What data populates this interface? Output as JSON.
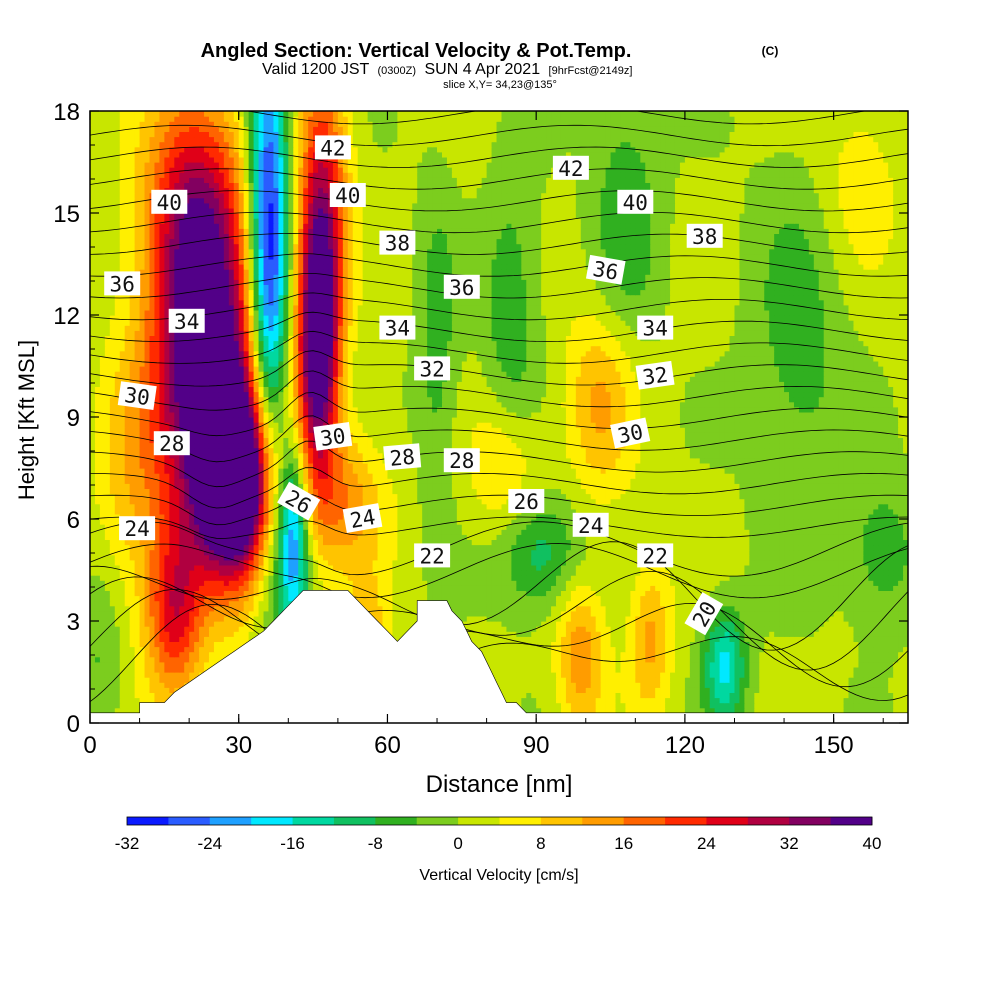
{
  "header": {
    "title_main": "Angled Section: Vertical Velocity & Pot.Temp.",
    "title_mark": "(C)",
    "valid_prefix": "Valid 1200 JST",
    "valid_utc": "(0300Z)",
    "valid_date": "SUN 4 Apr 2021",
    "valid_fcst": "[9hrFcst@2149z]",
    "slice": "slice X,Y= 34,23@135°"
  },
  "colorbar": {
    "ticks": [
      "-32",
      "-24",
      "-16",
      "-8",
      "0",
      "8",
      "16",
      "24",
      "32",
      "40"
    ],
    "label": "Vertical Velocity [cm/s]",
    "colors": [
      "#0a1aff",
      "#2a5cff",
      "#1ea0ff",
      "#00e8ff",
      "#00d8a0",
      "#10c060",
      "#30b020",
      "#7ccd1e",
      "#c8e600",
      "#ffef00",
      "#ffc400",
      "#ff9c00",
      "#ff6400",
      "#ff2a00",
      "#e00018",
      "#b00040",
      "#820060",
      "#520088"
    ]
  },
  "chart_data": {
    "type": "heatmap",
    "title": "Angled Section: Vertical Velocity & Pot.Temp.",
    "xlabel": "Distance [nm]",
    "ylabel": "Height [Kft MSL]",
    "xlim": [
      0,
      165
    ],
    "ylim": [
      0,
      18
    ],
    "x_ticks": [
      "0",
      "30",
      "60",
      "90",
      "120",
      "150"
    ],
    "y_ticks": [
      "0",
      "3",
      "6",
      "9",
      "12",
      "15",
      "18"
    ],
    "fill_variable": "Vertical Velocity [cm/s]",
    "fill_levels": [
      -32,
      -24,
      -16,
      -8,
      0,
      8,
      16,
      24,
      32,
      40
    ],
    "w_features": [
      {
        "x": 22,
        "z": 11.5,
        "w": 30,
        "sx": 7,
        "sz": 3.5
      },
      {
        "x": 30,
        "z": 7,
        "w": 40,
        "sx": 5,
        "sz": 1.8
      },
      {
        "x": 27,
        "z": 8.5,
        "w": 26,
        "sx": 8,
        "sz": 3
      },
      {
        "x": 21,
        "z": 15.5,
        "w": 18,
        "sx": 7,
        "sz": 2.5
      },
      {
        "x": 36,
        "z": 13.5,
        "w": -36,
        "sx": 2.8,
        "sz": 5.5
      },
      {
        "x": 41,
        "z": 5.5,
        "w": -28,
        "sx": 2.2,
        "sz": 2
      },
      {
        "x": 46,
        "z": 11,
        "w": 38,
        "sx": 2.8,
        "sz": 2.5
      },
      {
        "x": 47,
        "z": 15,
        "w": 26,
        "sx": 3.5,
        "sz": 3
      },
      {
        "x": 51,
        "z": 6.5,
        "w": 14,
        "sx": 6,
        "sz": 1.5
      },
      {
        "x": 103,
        "z": 9.5,
        "w": 12,
        "sx": 5,
        "sz": 2
      },
      {
        "x": 99,
        "z": 2,
        "w": 14,
        "sx": 3.5,
        "sz": 1.6
      },
      {
        "x": 113,
        "z": 2.5,
        "w": 12,
        "sx": 3,
        "sz": 1.6
      },
      {
        "x": 108,
        "z": 15,
        "w": -8,
        "sx": 5,
        "sz": 3
      },
      {
        "x": 85,
        "z": 12,
        "w": -8,
        "sx": 4,
        "sz": 3
      },
      {
        "x": 70,
        "z": 11,
        "w": -7,
        "sx": 3,
        "sz": 3.5
      },
      {
        "x": 91,
        "z": 5,
        "w": -12,
        "sx": 6,
        "sz": 1.2
      },
      {
        "x": 128,
        "z": 1.7,
        "w": -18,
        "sx": 3,
        "sz": 1.2
      },
      {
        "x": 143,
        "z": 11,
        "w": -7,
        "sx": 7,
        "sz": 4
      },
      {
        "x": 160,
        "z": 5,
        "w": -8,
        "sx": 5,
        "sz": 1.5
      },
      {
        "x": 2,
        "z": 2,
        "w": -6,
        "sx": 4,
        "sz": 2
      },
      {
        "x": 8,
        "z": 7,
        "w": 8,
        "sx": 5,
        "sz": 3
      },
      {
        "x": 17,
        "z": 3.2,
        "w": 22,
        "sx": 4,
        "sz": 1.8
      },
      {
        "x": 56,
        "z": 2.5,
        "w": 10,
        "sx": 3,
        "sz": 1.2
      },
      {
        "x": 84,
        "z": 7.5,
        "w": 9,
        "sx": 5,
        "sz": 1.5
      },
      {
        "x": 155,
        "z": 16,
        "w": 6,
        "sx": 6,
        "sz": 2
      }
    ],
    "isentropes_K": [
      18,
      19,
      20,
      21,
      22,
      23,
      24,
      25,
      26,
      27,
      28,
      29,
      30,
      31,
      32,
      33,
      34,
      35,
      36,
      37,
      38,
      39,
      40,
      41,
      42,
      43
    ],
    "isentrope_labels": [
      {
        "text": "42",
        "x": 49,
        "z": 16.9,
        "angle": 0
      },
      {
        "text": "42",
        "x": 97,
        "z": 16.3,
        "angle": 0
      },
      {
        "text": "40",
        "x": 16,
        "z": 15.3,
        "angle": 0
      },
      {
        "text": "40",
        "x": 52,
        "z": 15.5,
        "angle": 0
      },
      {
        "text": "40",
        "x": 110,
        "z": 15.3,
        "angle": 0
      },
      {
        "text": "38",
        "x": 62,
        "z": 14.1,
        "angle": 0
      },
      {
        "text": "38",
        "x": 124,
        "z": 14.3,
        "angle": 0
      },
      {
        "text": "36",
        "x": 6.5,
        "z": 12.9,
        "angle": 0
      },
      {
        "text": "36",
        "x": 75,
        "z": 12.8,
        "angle": 0
      },
      {
        "text": "36",
        "x": 104,
        "z": 13.3,
        "angle": 10
      },
      {
        "text": "34",
        "x": 19.5,
        "z": 11.8,
        "angle": 0
      },
      {
        "text": "34",
        "x": 62,
        "z": 11.6,
        "angle": 0
      },
      {
        "text": "34",
        "x": 114,
        "z": 11.6,
        "angle": 0
      },
      {
        "text": "32",
        "x": 69,
        "z": 10.4,
        "angle": 0
      },
      {
        "text": "32",
        "x": 114,
        "z": 10.2,
        "angle": -8
      },
      {
        "text": "30",
        "x": 9.5,
        "z": 9.6,
        "angle": 8
      },
      {
        "text": "30",
        "x": 49,
        "z": 8.4,
        "angle": -8
      },
      {
        "text": "30",
        "x": 109,
        "z": 8.5,
        "angle": -12
      },
      {
        "text": "28",
        "x": 16.5,
        "z": 8.2,
        "angle": 0
      },
      {
        "text": "28",
        "x": 63,
        "z": 7.8,
        "angle": -5
      },
      {
        "text": "28",
        "x": 75,
        "z": 7.7,
        "angle": 0
      },
      {
        "text": "26",
        "x": 42,
        "z": 6.5,
        "angle": 30
      },
      {
        "text": "26",
        "x": 88,
        "z": 6.5,
        "angle": 0
      },
      {
        "text": "24",
        "x": 9.5,
        "z": 5.7,
        "angle": 0
      },
      {
        "text": "24",
        "x": 55,
        "z": 6,
        "angle": -10
      },
      {
        "text": "24",
        "x": 101,
        "z": 5.8,
        "angle": 0
      },
      {
        "text": "22",
        "x": 69,
        "z": 4.9,
        "angle": 0
      },
      {
        "text": "22",
        "x": 114,
        "z": 4.9,
        "angle": 0
      },
      {
        "text": "20",
        "x": 124,
        "z": 3.2,
        "angle": -60
      }
    ],
    "terrain_kft": [
      [
        0,
        0.3
      ],
      [
        10,
        0.3
      ],
      [
        10,
        0.6
      ],
      [
        15,
        0.6
      ],
      [
        17,
        0.9
      ],
      [
        20,
        1.2
      ],
      [
        23,
        1.5
      ],
      [
        26,
        1.8
      ],
      [
        29,
        2.1
      ],
      [
        32,
        2.4
      ],
      [
        35,
        2.7
      ],
      [
        37,
        3.0
      ],
      [
        39,
        3.3
      ],
      [
        41,
        3.6
      ],
      [
        43,
        3.9
      ],
      [
        52,
        3.9
      ],
      [
        54,
        3.6
      ],
      [
        56,
        3.3
      ],
      [
        58,
        3.0
      ],
      [
        60,
        2.7
      ],
      [
        62,
        2.4
      ],
      [
        64,
        2.7
      ],
      [
        66,
        3.0
      ],
      [
        66,
        3.6
      ],
      [
        72,
        3.6
      ],
      [
        73,
        3.3
      ],
      [
        75,
        3.0
      ],
      [
        76,
        2.7
      ],
      [
        77,
        2.4
      ],
      [
        79,
        2.1
      ],
      [
        80,
        1.8
      ],
      [
        81,
        1.5
      ],
      [
        82,
        1.2
      ],
      [
        83,
        0.9
      ],
      [
        84,
        0.6
      ],
      [
        86,
        0.6
      ],
      [
        88,
        0.3
      ],
      [
        165,
        0.3
      ]
    ]
  }
}
